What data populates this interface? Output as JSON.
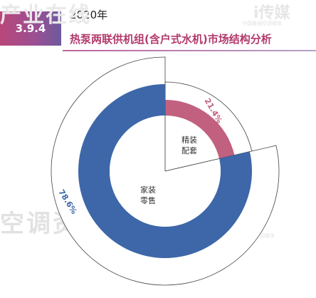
{
  "header": {
    "section_number": "3.9.4",
    "year": "2020年",
    "title": "热泵两联供机组(含户式水机)市场结构分析"
  },
  "watermark": {
    "main_text": "产业在线",
    "brand_text": "i传媒",
    "left_text": "空调资讯",
    "right_text": "媒",
    "small_text": "中国暖通空调媒体"
  },
  "colors": {
    "accent": "#c2607f",
    "primary": "#3d67a8",
    "header_badge": "#a4477f",
    "title": "#b23a6c"
  },
  "chart_data": {
    "type": "pie",
    "subtype": "donut-exploded",
    "title": "热泵两联供机组(含户式水机)市场结构分析",
    "categories": [
      "精装配套",
      "家装零售"
    ],
    "values": [
      21.4,
      78.6
    ],
    "value_labels": [
      "21.4%",
      "78.6%"
    ],
    "colors": [
      "#c2607f",
      "#3d67a8"
    ],
    "center_labels": [
      [
        "精装",
        "配套"
      ],
      [
        "家装",
        "零售"
      ]
    ]
  }
}
